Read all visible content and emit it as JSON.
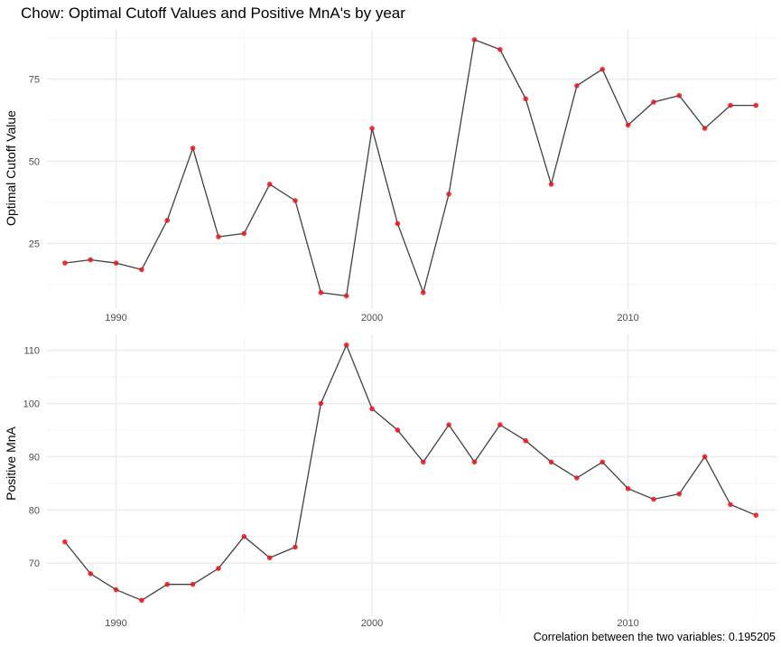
{
  "title": "Chow: Optimal Cutoff Values and Positive MnA's by year",
  "caption": "Correlation between the two variables: 0.195205",
  "colors": {
    "line": "#404040",
    "point": "#e8161f",
    "grid_major": "#ebebeb",
    "grid_minor": "#f4f4f4"
  },
  "chart_data": [
    {
      "type": "line",
      "ylabel": "Optimal Cutoff Value",
      "xlabel": "",
      "x_ticks": [
        1990,
        2000,
        2010
      ],
      "y_ticks": [
        25,
        50,
        75
      ],
      "xlim": [
        1987.3,
        2015.8
      ],
      "ylim": [
        5,
        90
      ],
      "grid": true,
      "x": [
        1988,
        1989,
        1990,
        1991,
        1992,
        1993,
        1994,
        1995,
        1996,
        1997,
        1998,
        1999,
        2000,
        2001,
        2002,
        2003,
        2004,
        2005,
        2006,
        2007,
        2008,
        2009,
        2010,
        2011,
        2012,
        2013,
        2014,
        2015
      ],
      "y": [
        19,
        20,
        19,
        17,
        32,
        54,
        27,
        28,
        43,
        38,
        10,
        9,
        60,
        31,
        10,
        40,
        87,
        84,
        69,
        43,
        73,
        78,
        61,
        68,
        70,
        60,
        67,
        67
      ]
    },
    {
      "type": "line",
      "ylabel": "Positive MnA",
      "xlabel": "",
      "x_ticks": [
        1990,
        2000,
        2010
      ],
      "y_ticks": [
        70,
        80,
        90,
        100,
        110
      ],
      "xlim": [
        1987.3,
        2015.8
      ],
      "ylim": [
        60,
        113
      ],
      "grid": true,
      "x": [
        1988,
        1989,
        1990,
        1991,
        1992,
        1993,
        1994,
        1995,
        1996,
        1997,
        1998,
        1999,
        2000,
        2001,
        2002,
        2003,
        2004,
        2005,
        2006,
        2007,
        2008,
        2009,
        2010,
        2011,
        2012,
        2013,
        2014,
        2015
      ],
      "y": [
        74,
        68,
        65,
        63,
        66,
        66,
        69,
        75,
        71,
        73,
        100,
        111,
        99,
        95,
        89,
        96,
        89,
        96,
        93,
        89,
        86,
        89,
        84,
        82,
        83,
        90,
        81,
        79
      ]
    }
  ]
}
